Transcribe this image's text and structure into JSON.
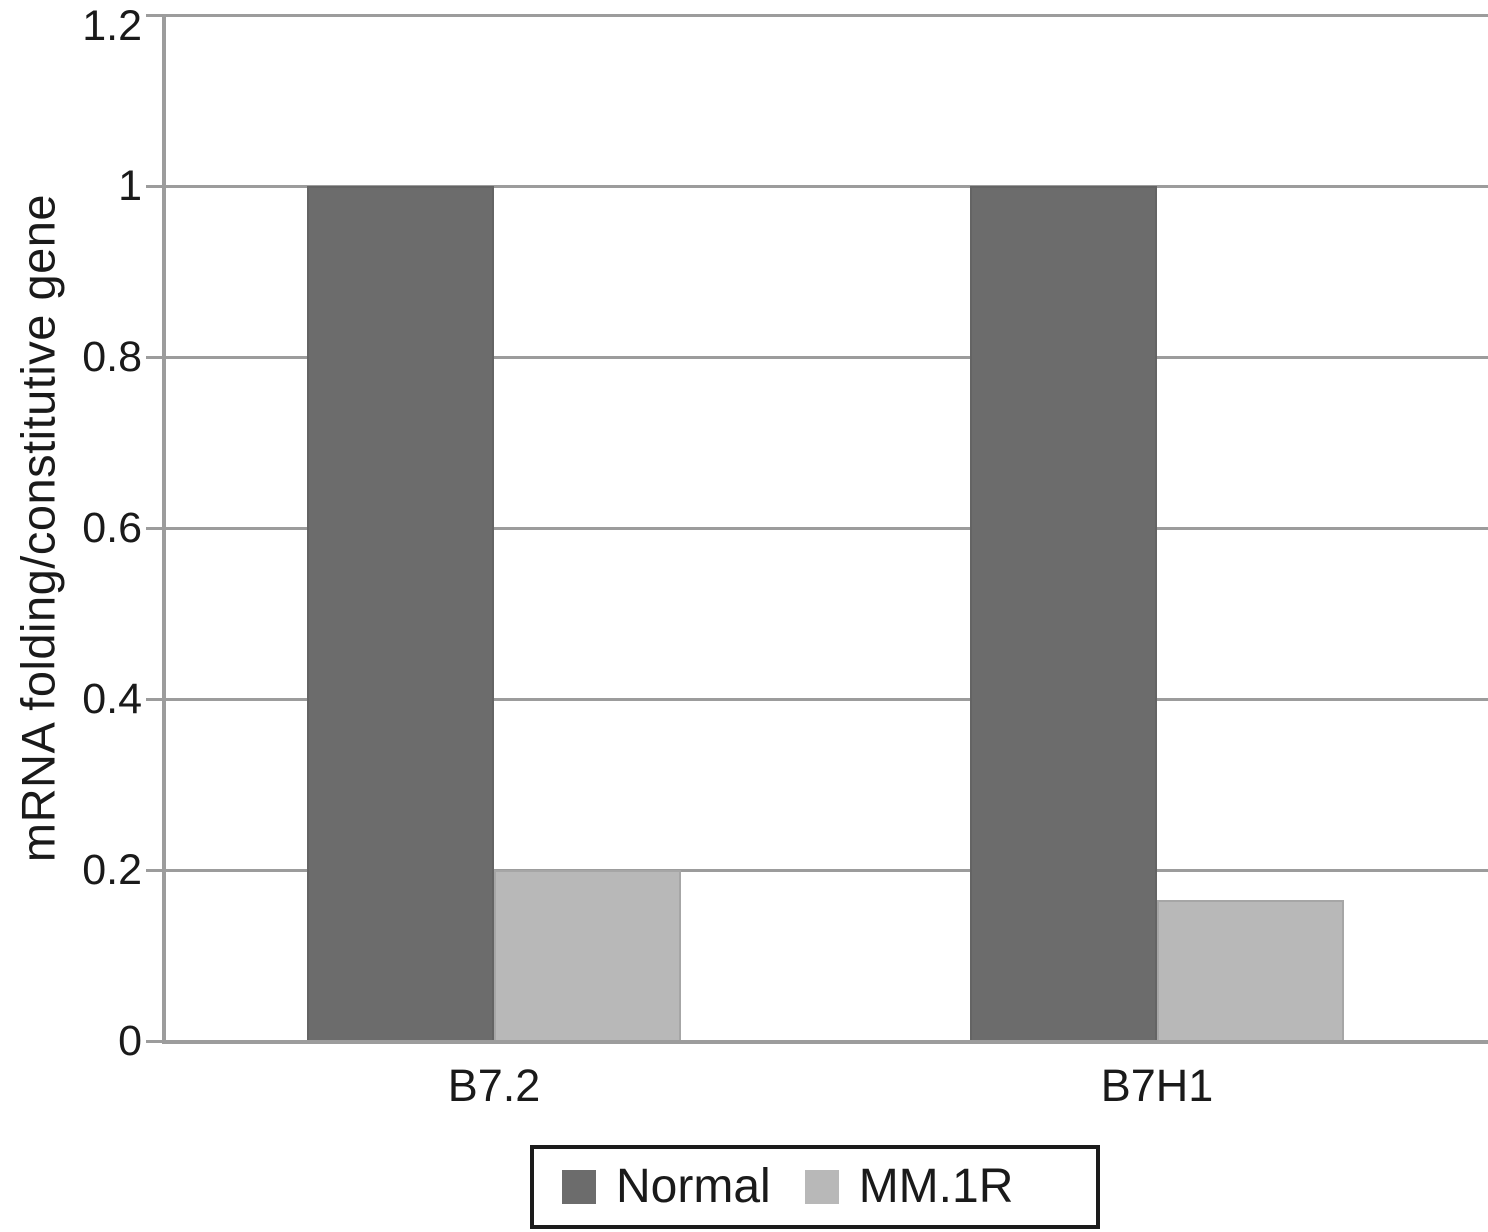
{
  "figure": {
    "background": "#ffffff",
    "text_color": "#1a1a1a"
  },
  "chart_data": {
    "type": "bar",
    "title": "",
    "xlabel": "",
    "ylabel": "mRNA folding/constitutive gene",
    "categories": [
      "B7.2",
      "B7H1"
    ],
    "series": [
      {
        "name": "Normal",
        "color": "#6c6c6c",
        "border_color": "#646464",
        "values": [
          1.0,
          1.0
        ]
      },
      {
        "name": "MM.1R",
        "color": "#b8b8b8",
        "border_color": "#a6a6a6",
        "values": [
          0.2,
          0.165
        ]
      }
    ],
    "ylim": [
      0,
      1.2
    ],
    "yticks": [
      0,
      0.2,
      0.4,
      0.6,
      0.8,
      1,
      1.2
    ],
    "ytick_labels": [
      "0",
      "0.2",
      "0.4",
      "0.6",
      "0.8",
      "1",
      "1.2"
    ],
    "grid": "horizontal",
    "grid_color": "#9c9c9c",
    "axis_color": "#9c9c9c",
    "legend_position": "bottom",
    "legend_border_color": "#1b1b1b"
  }
}
